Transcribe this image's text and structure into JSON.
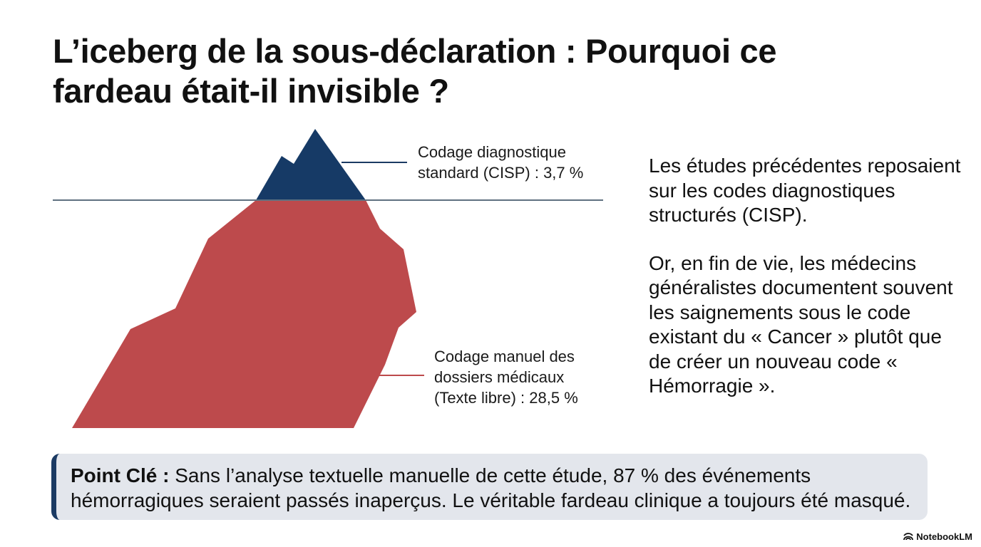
{
  "title": "L’iceberg de la sous-déclaration : Pourquoi ce fardeau était-il invisible ?",
  "diagram": {
    "tip_label": "Codage diagnostique standard (CISP) : 3,7 %",
    "tip_value_pct": 3.7,
    "submerged_label_lines": [
      "Codage manuel des",
      "dossiers médicaux",
      "(Texte libre) : 28,5 %"
    ],
    "submerged_value_pct": 28.5,
    "colors": {
      "tip": "#163a66",
      "submerged": "#bd4a4c",
      "waterline": "#5f7180",
      "connector_tip": "#1b3a63",
      "connector_submerged": "#bd4a4c"
    }
  },
  "side_text": {
    "paragraph_1": "Les études précédentes reposaient sur les codes diagnostiques structurés (CISP).",
    "paragraph_2": "Or, en fin de vie, les médecins généralistes documentent souvent les saignements sous le code existant du « Cancer » plutôt que de créer un nouveau code « Hémorragie »."
  },
  "callout": {
    "key": "Point Clé :",
    "text": " Sans l’analyse textuelle manuelle de cette étude, 87 % des événements hémorragiques seraient passés inaperçus. Le véritable fardeau clinique a toujours été masqué.",
    "accent_color": "#1b3a63"
  },
  "brand": {
    "icon": "notebooklm-icon",
    "label": "NotebookLM"
  }
}
